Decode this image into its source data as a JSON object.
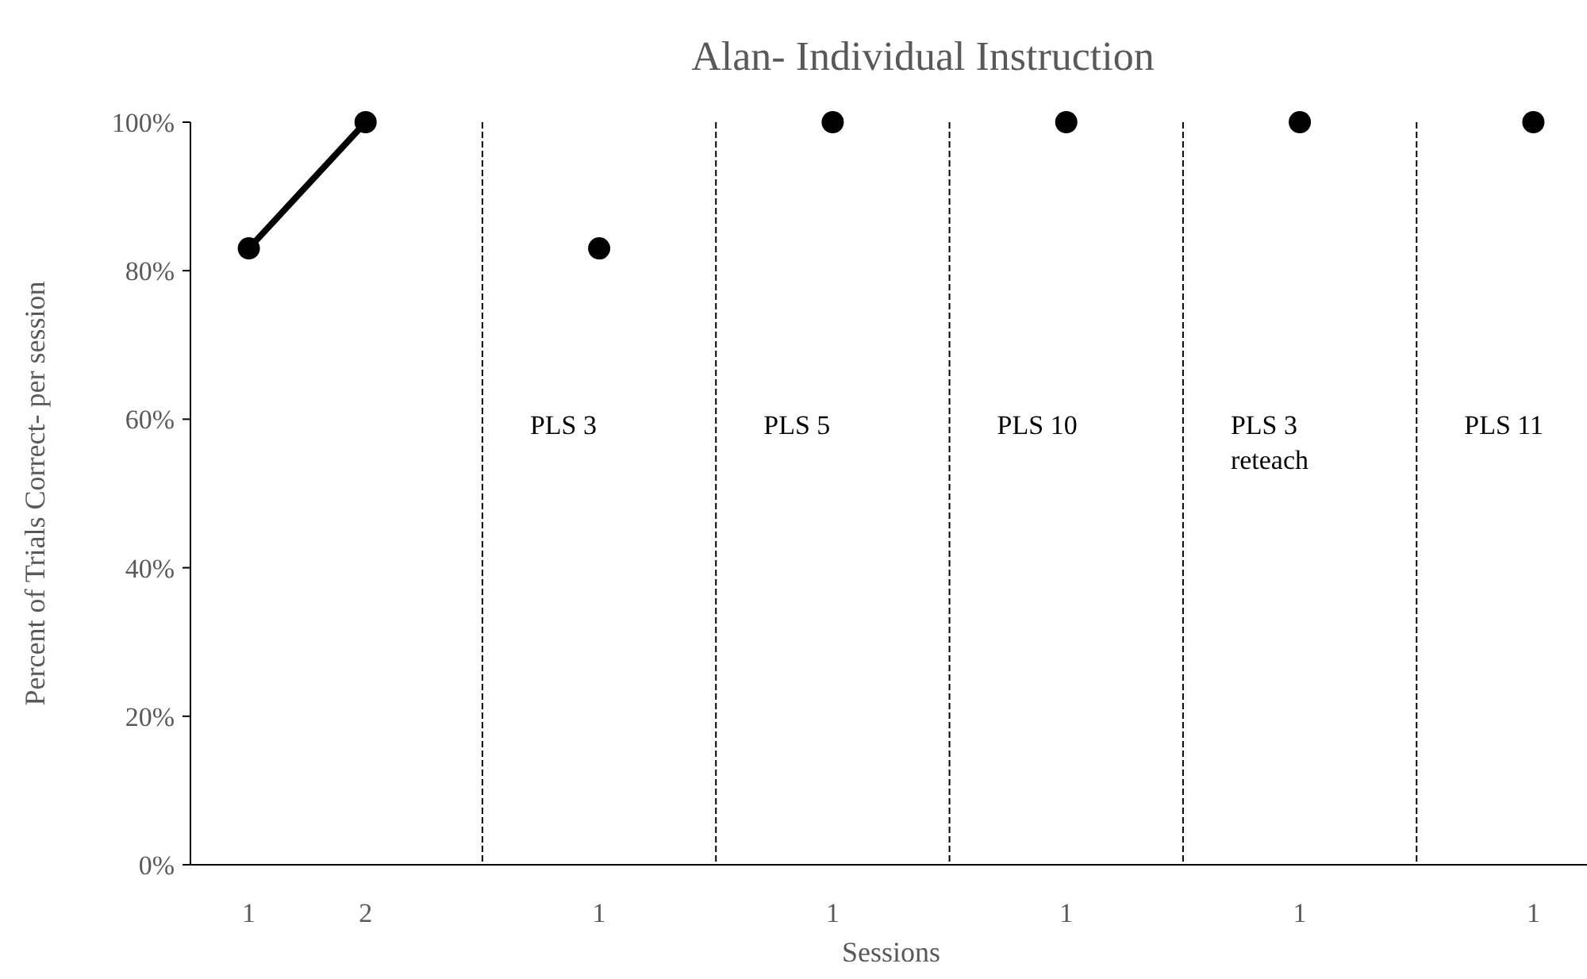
{
  "chart_data": {
    "type": "line",
    "title": "Alan- Individual Instruction",
    "xlabel": "Sessions",
    "ylabel": "Percent of Trials Correct- per session",
    "categories": [
      "1",
      "2",
      null,
      "1",
      null,
      "1",
      null,
      "1",
      null,
      "1",
      null,
      "1"
    ],
    "ylim": [
      0,
      100
    ],
    "yticks": [
      {
        "value": 0,
        "label": "0%"
      },
      {
        "value": 20,
        "label": "20%"
      },
      {
        "value": 40,
        "label": "40%"
      },
      {
        "value": 60,
        "label": "60%"
      },
      {
        "value": 80,
        "label": "80%"
      },
      {
        "value": 100,
        "label": "100%"
      }
    ],
    "series": [
      {
        "color": "#000000",
        "values": [
          83,
          100,
          null,
          null,
          null,
          null,
          null,
          null,
          null,
          null,
          null,
          null
        ]
      },
      {
        "type": "scatter",
        "color": "#000000",
        "values": [
          null,
          null,
          null,
          83,
          null,
          100,
          null,
          100,
          null,
          100,
          null,
          100
        ]
      }
    ],
    "marker": "circle",
    "line_style": "solid",
    "grid": "x",
    "annotations": [
      "PLS 3",
      "PLS 5",
      "PLS 10",
      "PLS 3 reteach",
      "PLS 11"
    ]
  }
}
